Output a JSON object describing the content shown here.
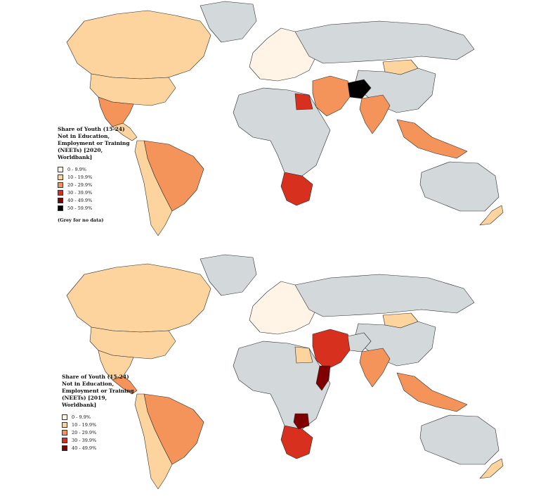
{
  "colors": {
    "ocean": "#ffffff",
    "no_data": "#d3d8db",
    "border": "#2b2b2b",
    "band_0_10": "#fff4e6",
    "band_10_20": "#fdd49e",
    "band_20_30": "#f4935a",
    "band_30_40": "#d7301f",
    "band_40_50": "#7f0000",
    "band_50_60": "#000000"
  },
  "maps": [
    {
      "legend": {
        "title": "Share of Youth (15-24) Not in Education, Employment or Training (NEETs) [2020, Worldbank]",
        "items": [
          {
            "label": "0 - 9.9%",
            "color": "#fff4e6"
          },
          {
            "label": "10 - 19.9%",
            "color": "#fdd49e"
          },
          {
            "label": "20 - 29.9%",
            "color": "#f4935a"
          },
          {
            "label": "30 - 39.9%",
            "color": "#d7301f"
          },
          {
            "label": "40 - 49.9%",
            "color": "#7f0000"
          },
          {
            "label": "50 - 59.9%",
            "color": "#000000"
          }
        ],
        "note": "(Grey for no data)"
      },
      "regions": [
        {
          "name": "canada",
          "band": "band_10_20"
        },
        {
          "name": "greenland",
          "band": "no_data"
        },
        {
          "name": "usa",
          "band": "band_10_20"
        },
        {
          "name": "mexico",
          "band": "band_20_30"
        },
        {
          "name": "central-america",
          "band": "band_10_20"
        },
        {
          "name": "south-america-east",
          "band": "band_20_30"
        },
        {
          "name": "south-america-west",
          "band": "band_10_20"
        },
        {
          "name": "europe",
          "band": "band_0_10"
        },
        {
          "name": "russia",
          "band": "no_data"
        },
        {
          "name": "mongolia",
          "band": "band_10_20"
        },
        {
          "name": "china",
          "band": "no_data"
        },
        {
          "name": "africa-main",
          "band": "no_data"
        },
        {
          "name": "egypt",
          "band": "band_30_40"
        },
        {
          "name": "southern-africa",
          "band": "band_30_40"
        },
        {
          "name": "middle-east",
          "band": "band_20_30"
        },
        {
          "name": "afghanistan",
          "band": "band_50_60"
        },
        {
          "name": "india",
          "band": "band_20_30"
        },
        {
          "name": "southeast-asia",
          "band": "band_20_30"
        },
        {
          "name": "australia",
          "band": "no_data"
        },
        {
          "name": "new-zealand",
          "band": "band_10_20"
        }
      ]
    },
    {
      "legend": {
        "title": "Share of Youth (15-24) Not in Education, Employment or Training (NEETs) [2019, Worldbank]",
        "items": [
          {
            "label": "0 - 9.9%",
            "color": "#fff4e6"
          },
          {
            "label": "10 - 19.9%",
            "color": "#fdd49e"
          },
          {
            "label": "20 - 29.9%",
            "color": "#f4935a"
          },
          {
            "label": "30 - 39.9%",
            "color": "#d7301f"
          },
          {
            "label": "40 - 49.9%",
            "color": "#7f0000"
          }
        ],
        "note": ""
      },
      "regions": [
        {
          "name": "canada",
          "band": "band_10_20"
        },
        {
          "name": "greenland",
          "band": "no_data"
        },
        {
          "name": "usa",
          "band": "band_10_20"
        },
        {
          "name": "mexico",
          "band": "band_10_20"
        },
        {
          "name": "central-america",
          "band": "band_20_30"
        },
        {
          "name": "south-america-east",
          "band": "band_20_30"
        },
        {
          "name": "south-america-west",
          "band": "band_10_20"
        },
        {
          "name": "europe",
          "band": "band_0_10"
        },
        {
          "name": "russia",
          "band": "no_data"
        },
        {
          "name": "mongolia",
          "band": "band_10_20"
        },
        {
          "name": "china",
          "band": "no_data"
        },
        {
          "name": "africa-main",
          "band": "no_data"
        },
        {
          "name": "egypt",
          "band": "band_10_20"
        },
        {
          "name": "southern-africa",
          "band": "band_30_40"
        },
        {
          "name": "middle-east",
          "band": "band_30_40"
        },
        {
          "name": "afghanistan",
          "band": "no_data"
        },
        {
          "name": "india",
          "band": "band_20_30"
        },
        {
          "name": "southeast-asia",
          "band": "band_20_30"
        },
        {
          "name": "australia",
          "band": "no_data"
        },
        {
          "name": "new-zealand",
          "band": "band_10_20"
        },
        {
          "name": "somalia",
          "band": "band_40_50"
        },
        {
          "name": "zimbabwe",
          "band": "band_40_50"
        }
      ]
    }
  ]
}
